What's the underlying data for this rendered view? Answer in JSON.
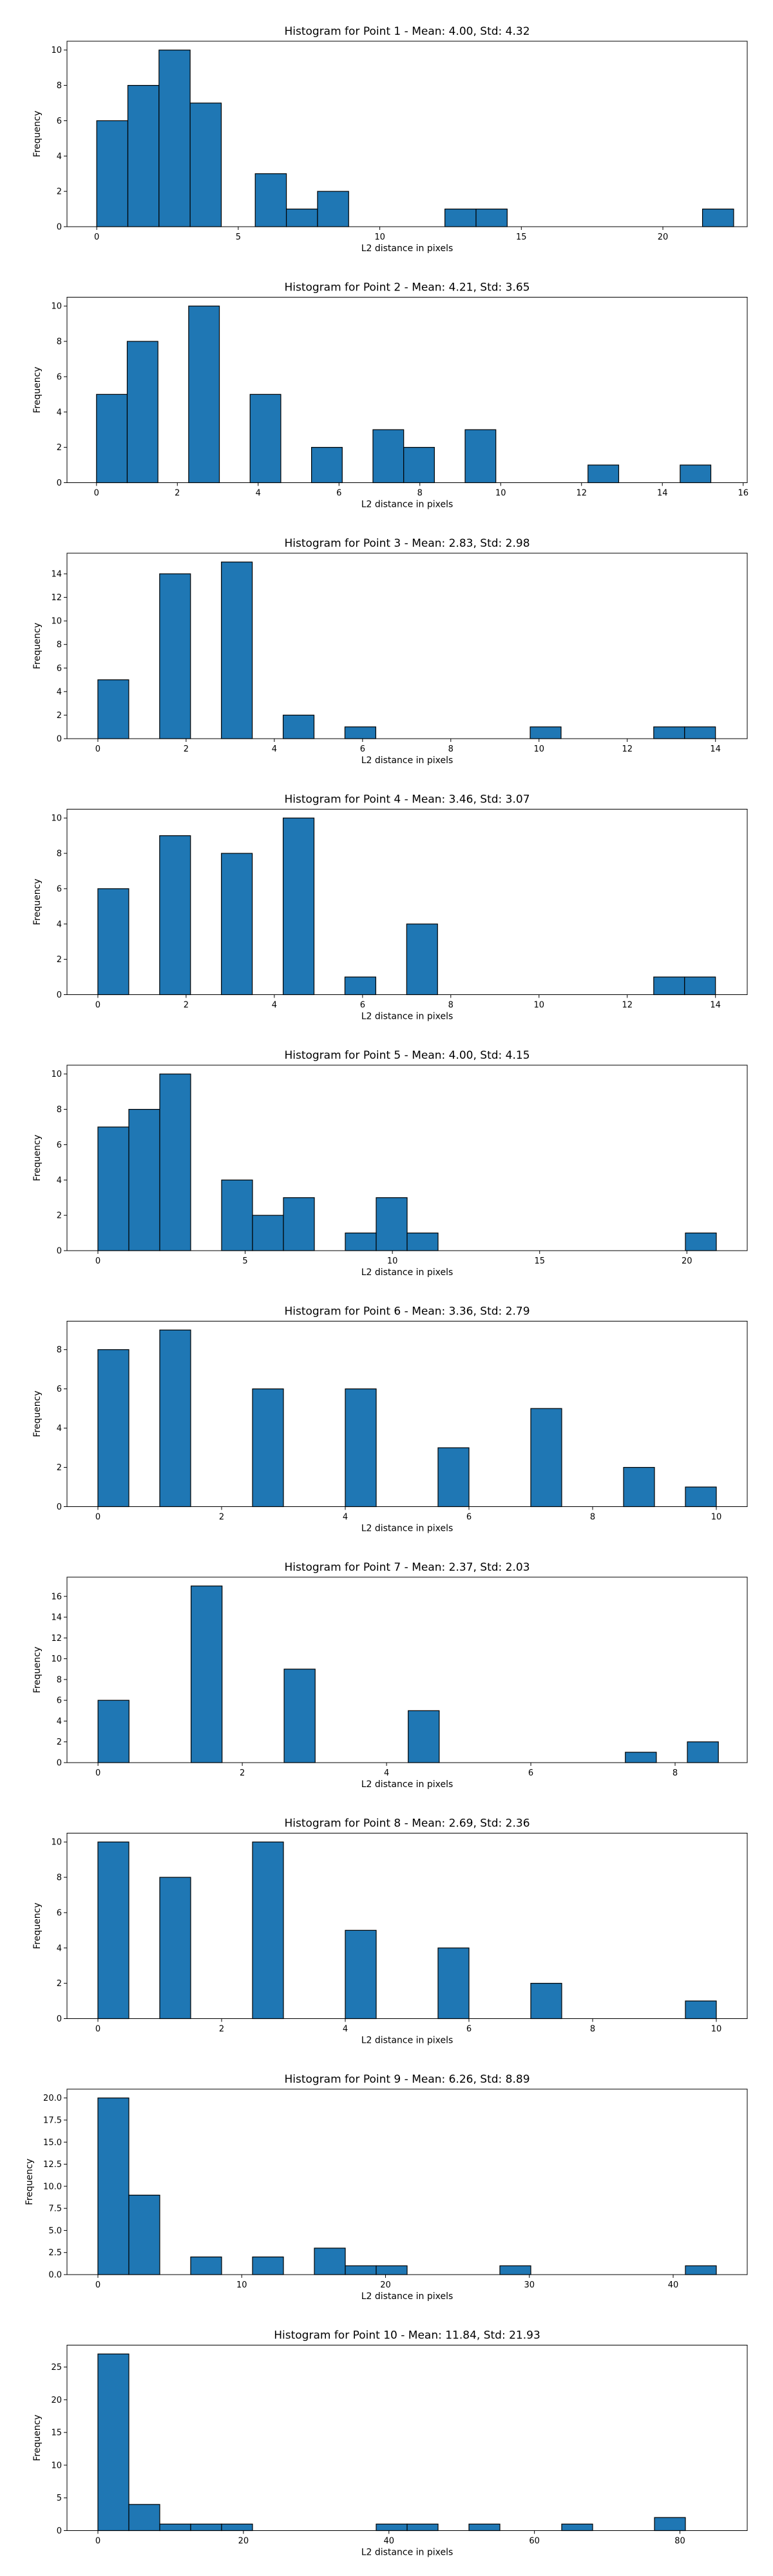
{
  "chart_data": [
    {
      "type": "bar",
      "title": "Histogram for Point 1 - Mean: 4.00, Std: 4.32",
      "xlabel": "L2 distance in pixels",
      "ylabel": "Frequency",
      "xlim": [
        -1.05,
        22.98
      ],
      "ylim": [
        0,
        10.5
      ],
      "xticks": [
        0,
        5,
        10,
        15,
        20
      ],
      "yticks": [
        0,
        2,
        4,
        6,
        8,
        10
      ],
      "grid": false,
      "bins": [
        {
          "x0": 0.0,
          "x1": 1.1,
          "count": 6
        },
        {
          "x0": 1.1,
          "x1": 2.2,
          "count": 8
        },
        {
          "x0": 2.2,
          "x1": 3.3,
          "count": 10
        },
        {
          "x0": 3.3,
          "x1": 4.4,
          "count": 7
        },
        {
          "x0": 5.6,
          "x1": 6.7,
          "count": 3
        },
        {
          "x0": 6.7,
          "x1": 7.8,
          "count": 1
        },
        {
          "x0": 7.8,
          "x1": 8.9,
          "count": 2
        },
        {
          "x0": 12.3,
          "x1": 13.4,
          "count": 1
        },
        {
          "x0": 13.4,
          "x1": 14.5,
          "count": 1
        },
        {
          "x0": 21.4,
          "x1": 22.5,
          "count": 1
        }
      ]
    },
    {
      "type": "bar",
      "title": "Histogram for Point 2 - Mean: 4.21, Std: 3.65",
      "xlabel": "L2 distance in pixels",
      "ylabel": "Frequency",
      "xlim": [
        -0.73,
        16.1
      ],
      "ylim": [
        0,
        10.5
      ],
      "xticks": [
        0,
        2,
        4,
        6,
        8,
        10,
        12,
        14,
        16
      ],
      "yticks": [
        0,
        2,
        4,
        6,
        8,
        10
      ],
      "grid": false,
      "bins": [
        {
          "x0": 0.0,
          "x1": 0.76,
          "count": 5
        },
        {
          "x0": 0.76,
          "x1": 1.52,
          "count": 8
        },
        {
          "x0": 2.28,
          "x1": 3.04,
          "count": 10
        },
        {
          "x0": 3.8,
          "x1": 4.56,
          "count": 5
        },
        {
          "x0": 5.32,
          "x1": 6.08,
          "count": 2
        },
        {
          "x0": 6.84,
          "x1": 7.6,
          "count": 3
        },
        {
          "x0": 7.6,
          "x1": 8.36,
          "count": 2
        },
        {
          "x0": 9.12,
          "x1": 9.88,
          "count": 3
        },
        {
          "x0": 12.16,
          "x1": 12.92,
          "count": 1
        },
        {
          "x0": 14.44,
          "x1": 15.2,
          "count": 1
        }
      ]
    },
    {
      "type": "bar",
      "title": "Histogram for Point 3 - Mean: 2.83, Std: 2.98",
      "xlabel": "L2 distance in pixels",
      "ylabel": "Frequency",
      "xlim": [
        -0.7,
        14.72
      ],
      "ylim": [
        0,
        15.75
      ],
      "xticks": [
        0,
        2,
        4,
        6,
        8,
        10,
        12,
        14
      ],
      "yticks": [
        0,
        2,
        4,
        6,
        8,
        10,
        12,
        14
      ],
      "grid": false,
      "bins": [
        {
          "x0": 0.0,
          "x1": 0.7,
          "count": 5
        },
        {
          "x0": 1.4,
          "x1": 2.1,
          "count": 14
        },
        {
          "x0": 2.8,
          "x1": 3.5,
          "count": 15
        },
        {
          "x0": 4.2,
          "x1": 4.9,
          "count": 2
        },
        {
          "x0": 5.6,
          "x1": 6.3,
          "count": 1
        },
        {
          "x0": 9.8,
          "x1": 10.5,
          "count": 1
        },
        {
          "x0": 12.6,
          "x1": 13.3,
          "count": 1
        },
        {
          "x0": 13.3,
          "x1": 14.0,
          "count": 1
        }
      ]
    },
    {
      "type": "bar",
      "title": "Histogram for Point 4 - Mean: 3.46, Std: 3.07",
      "xlabel": "L2 distance in pixels",
      "ylabel": "Frequency",
      "xlim": [
        -0.7,
        14.72
      ],
      "ylim": [
        0,
        10.5
      ],
      "xticks": [
        0,
        2,
        4,
        6,
        8,
        10,
        12,
        14
      ],
      "yticks": [
        0,
        2,
        4,
        6,
        8,
        10
      ],
      "grid": false,
      "bins": [
        {
          "x0": 0.0,
          "x1": 0.7,
          "count": 6
        },
        {
          "x0": 1.4,
          "x1": 2.1,
          "count": 9
        },
        {
          "x0": 2.8,
          "x1": 3.5,
          "count": 8
        },
        {
          "x0": 4.2,
          "x1": 4.9,
          "count": 10
        },
        {
          "x0": 5.6,
          "x1": 6.3,
          "count": 1
        },
        {
          "x0": 7.0,
          "x1": 7.7,
          "count": 4
        },
        {
          "x0": 12.6,
          "x1": 13.3,
          "count": 1
        },
        {
          "x0": 13.3,
          "x1": 14.0,
          "count": 1
        }
      ]
    },
    {
      "type": "bar",
      "title": "Histogram for Point 5 - Mean: 4.00, Std: 4.15",
      "xlabel": "L2 distance in pixels",
      "ylabel": "Frequency",
      "xlim": [
        -1.05,
        22.05
      ],
      "ylim": [
        0,
        10.5
      ],
      "xticks": [
        0,
        5,
        10,
        15,
        20
      ],
      "yticks": [
        0,
        2,
        4,
        6,
        8,
        10
      ],
      "grid": false,
      "bins": [
        {
          "x0": 0.0,
          "x1": 1.05,
          "count": 7
        },
        {
          "x0": 1.05,
          "x1": 2.1,
          "count": 8
        },
        {
          "x0": 2.1,
          "x1": 3.15,
          "count": 10
        },
        {
          "x0": 4.2,
          "x1": 5.25,
          "count": 4
        },
        {
          "x0": 5.25,
          "x1": 6.3,
          "count": 2
        },
        {
          "x0": 6.3,
          "x1": 7.35,
          "count": 3
        },
        {
          "x0": 8.4,
          "x1": 9.45,
          "count": 1
        },
        {
          "x0": 9.45,
          "x1": 10.5,
          "count": 3
        },
        {
          "x0": 10.5,
          "x1": 11.55,
          "count": 1
        },
        {
          "x0": 19.95,
          "x1": 21.0,
          "count": 1
        }
      ]
    },
    {
      "type": "bar",
      "title": "Histogram for Point 6 - Mean: 3.36, Std: 2.79",
      "xlabel": "L2 distance in pixels",
      "ylabel": "Frequency",
      "xlim": [
        -0.5,
        10.5
      ],
      "ylim": [
        0,
        9.45
      ],
      "xticks": [
        0,
        2,
        4,
        6,
        8,
        10
      ],
      "yticks": [
        0,
        2,
        4,
        6,
        8
      ],
      "grid": false,
      "bins": [
        {
          "x0": 0.0,
          "x1": 0.5,
          "count": 8
        },
        {
          "x0": 1.0,
          "x1": 1.5,
          "count": 9
        },
        {
          "x0": 2.5,
          "x1": 3.0,
          "count": 6
        },
        {
          "x0": 4.0,
          "x1": 4.5,
          "count": 6
        },
        {
          "x0": 5.5,
          "x1": 6.0,
          "count": 3
        },
        {
          "x0": 7.0,
          "x1": 7.5,
          "count": 5
        },
        {
          "x0": 8.5,
          "x1": 9.0,
          "count": 2
        },
        {
          "x0": 9.5,
          "x1": 10.0,
          "count": 1
        }
      ]
    },
    {
      "type": "bar",
      "title": "Histogram for Point 7 - Mean: 2.37, Std: 2.03",
      "xlabel": "L2 distance in pixels",
      "ylabel": "Frequency",
      "xlim": [
        -0.43,
        9.0
      ],
      "ylim": [
        0,
        17.85
      ],
      "xticks": [
        0,
        2,
        4,
        6,
        8
      ],
      "yticks": [
        0,
        2,
        4,
        6,
        8,
        10,
        12,
        14,
        16
      ],
      "grid": false,
      "bins": [
        {
          "x0": 0.0,
          "x1": 0.43,
          "count": 6
        },
        {
          "x0": 1.29,
          "x1": 1.72,
          "count": 17
        },
        {
          "x0": 2.58,
          "x1": 3.01,
          "count": 9
        },
        {
          "x0": 4.3,
          "x1": 4.73,
          "count": 5
        },
        {
          "x0": 7.31,
          "x1": 7.74,
          "count": 1
        },
        {
          "x0": 8.17,
          "x1": 8.6,
          "count": 2
        }
      ]
    },
    {
      "type": "bar",
      "title": "Histogram for Point 8 - Mean: 2.69, Std: 2.36",
      "xlabel": "L2 distance in pixels",
      "ylabel": "Frequency",
      "xlim": [
        -0.5,
        10.5
      ],
      "ylim": [
        0,
        10.5
      ],
      "xticks": [
        0,
        2,
        4,
        6,
        8,
        10
      ],
      "yticks": [
        0,
        2,
        4,
        6,
        8,
        10
      ],
      "grid": false,
      "bins": [
        {
          "x0": 0.0,
          "x1": 0.5,
          "count": 10
        },
        {
          "x0": 1.0,
          "x1": 1.5,
          "count": 8
        },
        {
          "x0": 2.5,
          "x1": 3.0,
          "count": 10
        },
        {
          "x0": 4.0,
          "x1": 4.5,
          "count": 5
        },
        {
          "x0": 5.5,
          "x1": 6.0,
          "count": 4
        },
        {
          "x0": 7.0,
          "x1": 7.5,
          "count": 2
        },
        {
          "x0": 9.5,
          "x1": 10.0,
          "count": 1
        }
      ]
    },
    {
      "type": "bar",
      "title": "Histogram for Point 9 - Mean: 6.26, Std: 8.89",
      "xlabel": "L2 distance in pixels",
      "ylabel": "Frequency",
      "xlim": [
        -2.15,
        45.15
      ],
      "ylim": [
        0,
        21.0
      ],
      "xticks": [
        0,
        10,
        20,
        30,
        40
      ],
      "yticks": [
        0.0,
        2.5,
        5.0,
        7.5,
        10.0,
        12.5,
        15.0,
        17.5,
        20.0
      ],
      "ytick_format": "fixed1",
      "grid": false,
      "bins": [
        {
          "x0": 0.0,
          "x1": 2.15,
          "count": 20
        },
        {
          "x0": 2.15,
          "x1": 4.3,
          "count": 9
        },
        {
          "x0": 6.45,
          "x1": 8.6,
          "count": 2
        },
        {
          "x0": 10.75,
          "x1": 12.9,
          "count": 2
        },
        {
          "x0": 15.05,
          "x1": 17.2,
          "count": 3
        },
        {
          "x0": 17.2,
          "x1": 19.35,
          "count": 1
        },
        {
          "x0": 19.35,
          "x1": 21.5,
          "count": 1
        },
        {
          "x0": 27.95,
          "x1": 30.1,
          "count": 1
        },
        {
          "x0": 40.85,
          "x1": 43.0,
          "count": 1
        }
      ]
    },
    {
      "type": "bar",
      "title": "Histogram for Point 10 - Mean: 11.84, Std: 21.93",
      "xlabel": "L2 distance in pixels",
      "ylabel": "Frequency",
      "xlim": [
        -4.25,
        89.25
      ],
      "ylim": [
        0,
        28.35
      ],
      "xticks": [
        0,
        20,
        40,
        60,
        80
      ],
      "yticks": [
        0,
        5,
        10,
        15,
        20,
        25
      ],
      "grid": false,
      "bins": [
        {
          "x0": 0.0,
          "x1": 4.25,
          "count": 27
        },
        {
          "x0": 4.25,
          "x1": 8.5,
          "count": 4
        },
        {
          "x0": 8.5,
          "x1": 12.75,
          "count": 1
        },
        {
          "x0": 12.75,
          "x1": 17.0,
          "count": 1
        },
        {
          "x0": 17.0,
          "x1": 21.25,
          "count": 1
        },
        {
          "x0": 38.25,
          "x1": 42.5,
          "count": 1
        },
        {
          "x0": 42.5,
          "x1": 46.75,
          "count": 1
        },
        {
          "x0": 51.0,
          "x1": 55.25,
          "count": 1
        },
        {
          "x0": 63.75,
          "x1": 68.0,
          "count": 1
        },
        {
          "x0": 76.5,
          "x1": 80.75,
          "count": 2
        }
      ]
    }
  ]
}
